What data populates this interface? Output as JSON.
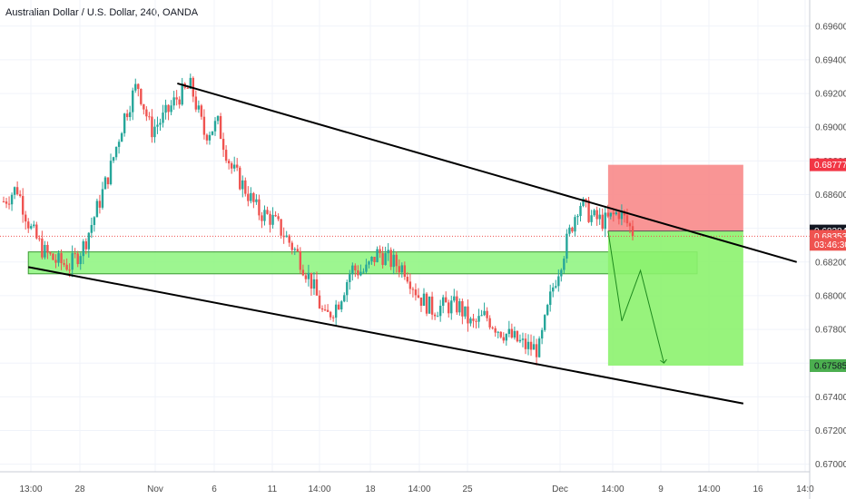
{
  "chart_data": {
    "type": "candlestick",
    "title": "Australian Dollar / U.S. Dollar, 240, OANDA",
    "x_ticks": [
      "13:00",
      "28",
      "Nov",
      "6",
      "11",
      "14:00",
      "18",
      "14:00",
      "25",
      "Dec",
      "14:00",
      "9",
      "14:00",
      "16",
      "14:0"
    ],
    "y_ticks": [
      0.696,
      0.694,
      0.692,
      0.69,
      0.688,
      0.686,
      0.684,
      0.682,
      0.68,
      0.678,
      0.676,
      0.674,
      0.672,
      0.67
    ],
    "ylim": [
      0.66955,
      0.69755
    ],
    "price_path": [
      [
        0.6856,
        0.6864
      ],
      [
        0.684,
        0.6826
      ],
      [
        0.682,
        0.6818
      ],
      [
        0.683,
        0.6852
      ],
      [
        0.6876,
        0.6906
      ],
      [
        0.6926,
        0.6898
      ],
      [
        0.6906,
        0.6918
      ],
      [
        0.6924,
        0.6896
      ],
      [
        0.6902,
        0.6876
      ],
      [
        0.6864,
        0.685
      ],
      [
        0.6846,
        0.6836
      ],
      [
        0.6824,
        0.6808
      ],
      [
        0.6786,
        0.6796
      ],
      [
        0.6816,
        0.6814
      ],
      [
        0.6826,
        0.682
      ],
      [
        0.6816,
        0.68
      ],
      [
        0.6792,
        0.6794
      ],
      [
        0.6794,
        0.6782
      ],
      [
        0.6788,
        0.678
      ],
      [
        0.6775,
        0.677
      ],
      [
        0.6768,
        0.6804
      ],
      [
        0.683,
        0.6856
      ],
      [
        0.6846,
        0.6844
      ],
      [
        0.685,
        0.6838
      ]
    ],
    "channel_lines": [
      {
        "name": "upper",
        "start": [
          0.219,
          0.6926
        ],
        "end": [
          0.984,
          0.682
        ]
      },
      {
        "name": "lower",
        "start": [
          0.035,
          0.6817
        ],
        "end": [
          0.918,
          0.6736
        ]
      }
    ],
    "support_zone": {
      "x_range": [
        0.035,
        0.861
      ],
      "price_range": [
        0.6813,
        0.6826
      ]
    },
    "position": {
      "type": "short",
      "x_range": [
        0.751,
        0.918
      ],
      "entry": 0.68384,
      "stop": 0.68777,
      "target": 0.67585
    },
    "projection": [
      [
        0.751,
        0.68384
      ],
      [
        0.768,
        0.6785
      ],
      [
        0.791,
        0.6815
      ],
      [
        0.82,
        0.676
      ]
    ],
    "price_tags": [
      {
        "label": "0.68777",
        "value": 0.68777,
        "bg": "#f23645",
        "fg": "#ffffff"
      },
      {
        "label": "0.68384",
        "value": 0.68384,
        "bg": "#131722",
        "fg": "#ffffff"
      },
      {
        "label": "0.68353",
        "value": 0.68353,
        "bg": "#ef5350",
        "fg": "#ffffff"
      },
      {
        "label": "03:46:30",
        "value": 0.68305,
        "bg": "#ef5350",
        "fg": "#ffffff"
      },
      {
        "label": "0.67585",
        "value": 0.67585,
        "bg": "#4caf50",
        "fg": "#131722"
      }
    ],
    "current_price": 0.68353,
    "colors": {
      "up": "#26a69a",
      "down": "#ef5350",
      "zone_fill": "#8cf57d",
      "zone_stroke": "#3a9a32",
      "stop_fill": "#f88a8a",
      "target_fill": "#8cf26e",
      "line": "#000000",
      "grid": "#f0f3fa",
      "axis_text": "#4a4a4a"
    },
    "grid": true,
    "legend": "none"
  }
}
